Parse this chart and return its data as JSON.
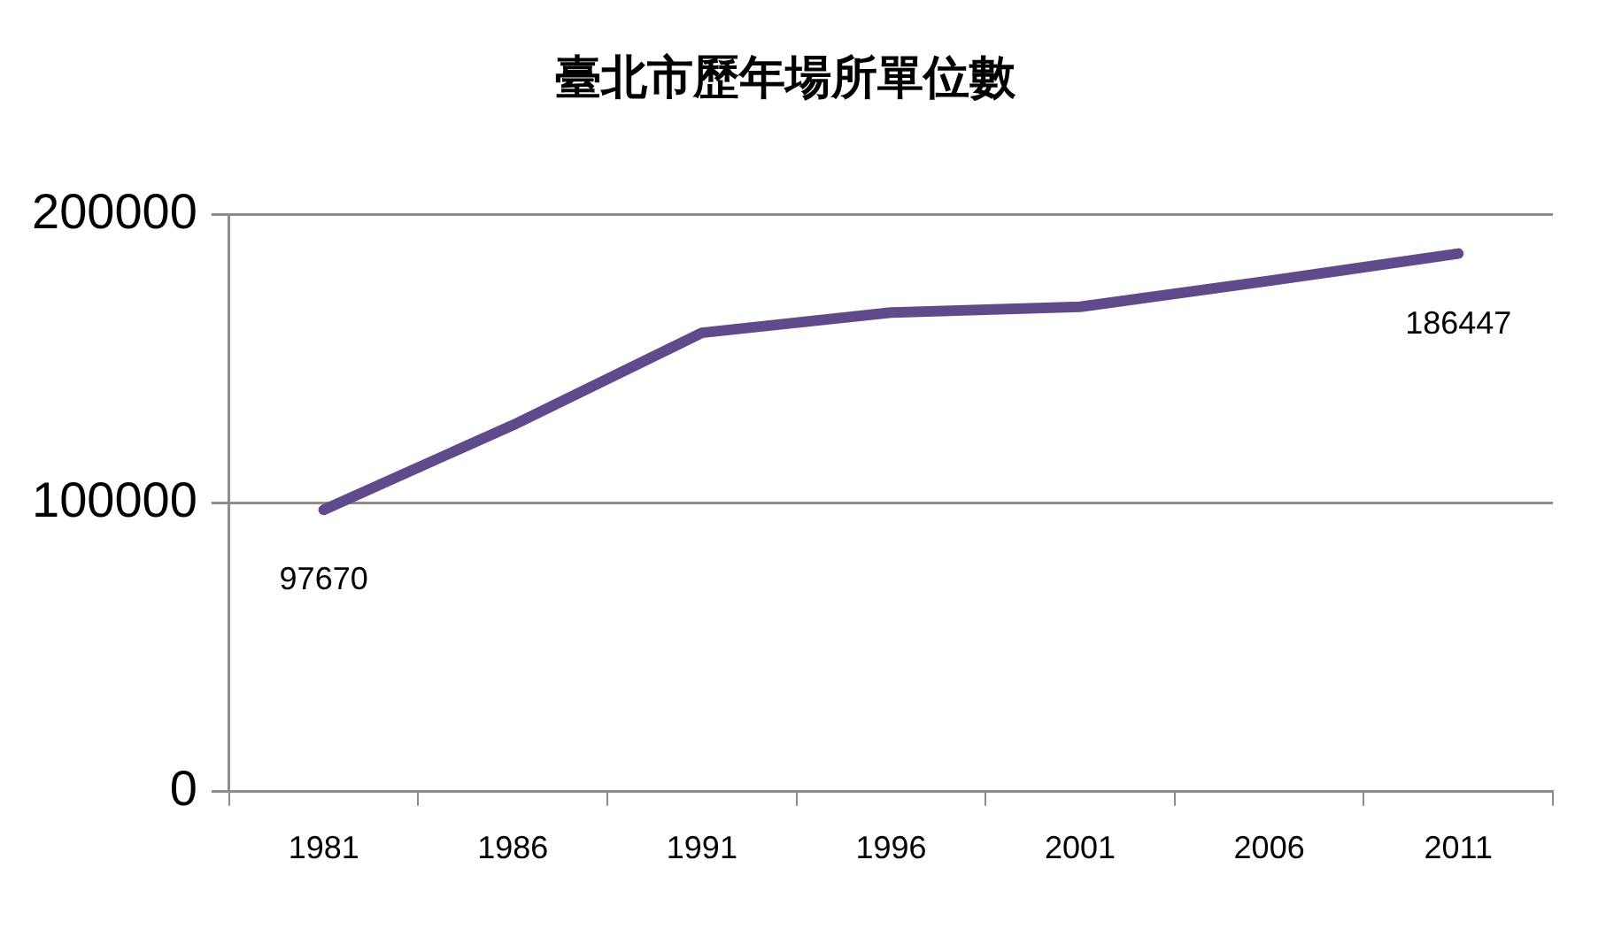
{
  "chart_data": {
    "type": "line",
    "title": "臺北市歷年場所單位數",
    "categories": [
      "1981",
      "1986",
      "1991",
      "1996",
      "2001",
      "2006",
      "2011"
    ],
    "series": [
      {
        "color": "#5f4b8b",
        "values": [
          97670,
          127000,
          159000,
          166000,
          168000,
          177000,
          186447
        ],
        "value_labels": [
          "97670",
          null,
          null,
          null,
          null,
          null,
          "186447"
        ]
      }
    ],
    "ylim": [
      0,
      200000
    ],
    "yticks": [
      0,
      100000,
      200000
    ],
    "grid": "y"
  }
}
